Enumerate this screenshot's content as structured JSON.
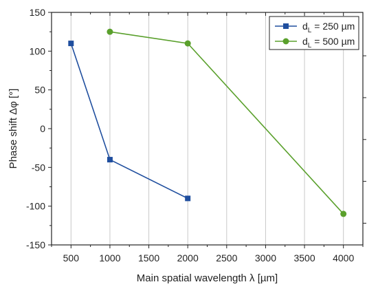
{
  "chart_data": {
    "type": "line",
    "xlabel": "Main spatial wavelength λ [µm]",
    "ylabel": "Phase shift Δφ [°]",
    "xlim": [
      250,
      4250
    ],
    "ylim": [
      -150,
      150
    ],
    "xticks": [
      500,
      1000,
      1500,
      2000,
      2500,
      3000,
      3500,
      4000
    ],
    "yticks": [
      150,
      100,
      50,
      0,
      -50,
      -100,
      -150
    ],
    "grid": "vertical",
    "legend_position": "top-right",
    "series": [
      {
        "name_main": "d",
        "name_sub": "L",
        "name_rest": " = 250 µm",
        "marker": "square",
        "color": "#1f4e9e",
        "x": [
          500,
          1000,
          2000
        ],
        "y": [
          110,
          -40,
          -90
        ]
      },
      {
        "name_main": "d",
        "name_sub": "L",
        "name_rest": " = 500 µm",
        "marker": "circle",
        "color": "#5aa02c",
        "x": [
          1000,
          2000,
          4000
        ],
        "y": [
          125,
          110,
          -110
        ]
      }
    ]
  }
}
